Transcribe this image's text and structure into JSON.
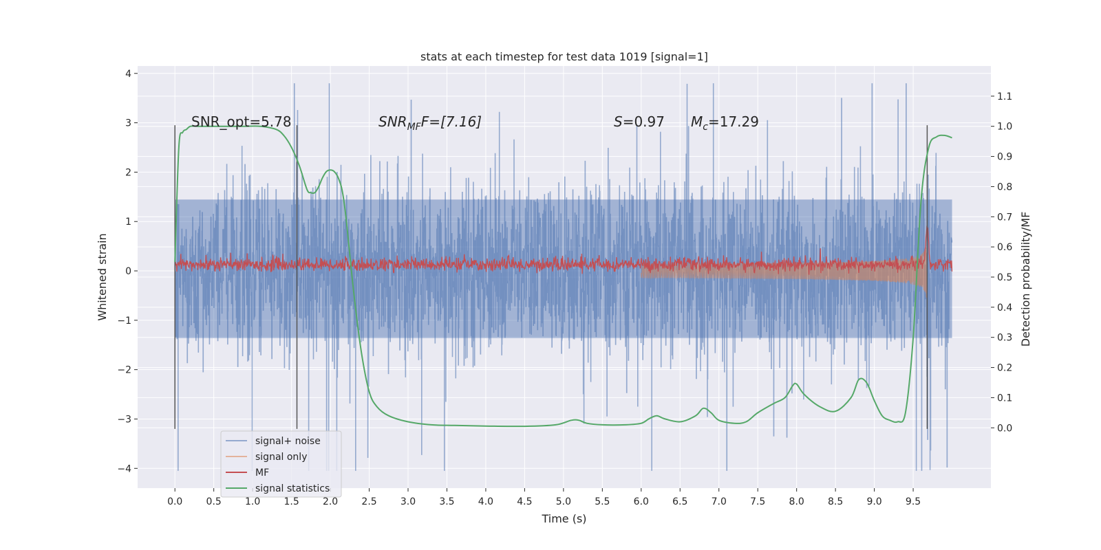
{
  "chart_data": {
    "type": "line",
    "title": "stats at each timestep for test data 1019 [signal=1]",
    "xlabel": "Time (s)",
    "ylabel": "Whitened strain",
    "y2label": "Detection probability/MF",
    "xlim": [
      -0.48,
      10.5
    ],
    "ylim": [
      -4.4,
      4.15
    ],
    "y2lim": [
      -0.2,
      1.2
    ],
    "x_ticks": [
      "0.0",
      "0.5",
      "1.0",
      "1.5",
      "2.0",
      "2.5",
      "3.0",
      "3.5",
      "4.0",
      "4.5",
      "5.0",
      "5.5",
      "6.0",
      "6.5",
      "7.0",
      "7.5",
      "8.0",
      "8.5",
      "9.0",
      "9.5"
    ],
    "y_ticks": [
      "−4",
      "−3",
      "−2",
      "−1",
      "0",
      "1",
      "2",
      "3",
      "4"
    ],
    "y2_ticks": [
      "0.0",
      "0.1",
      "0.2",
      "0.3",
      "0.4",
      "0.5",
      "0.6",
      "0.7",
      "0.8",
      "0.9",
      "1.0",
      "1.1"
    ],
    "grid": true,
    "legend_placement": "lower-left",
    "annotations": {
      "snr_opt": "SNR_opt=5.78",
      "snr_mf_main": "SNR",
      "snr_mf_sub": "MF",
      "snr_mf_rest": "F=[7.16]",
      "s_main": "S",
      "s_rest": "=0.97",
      "mc_main": "M",
      "mc_sub": "c",
      "mc_rest": "=17.29"
    },
    "vertical_lines_x": [
      0.0,
      1.57,
      9.68
    ],
    "series": [
      {
        "name": "signal+ noise",
        "color": "#4c72b0",
        "kind": "noise-band",
        "x_range": [
          0.0,
          10.0
        ],
        "typical_range": [
          -1.6,
          1.7
        ],
        "peak_range": [
          -4.05,
          3.8
        ]
      },
      {
        "name": "signal only",
        "color": "#dd8452",
        "kind": "chirp",
        "x_range": [
          0.0,
          9.68
        ],
        "amplitude_end": 0.75
      },
      {
        "name": "MF",
        "color": "#c44e52",
        "kind": "noise-band-right-axis",
        "x_range": [
          0.0,
          10.0
        ],
        "typical_range": [
          0.52,
          0.56
        ],
        "peak_range": [
          0.5,
          0.67
        ]
      },
      {
        "name": "signal statistics",
        "color": "#55a868",
        "kind": "line-right-axis",
        "x": [
          0.0,
          0.05,
          0.1,
          0.15,
          0.2,
          0.3,
          0.5,
          0.7,
          0.9,
          1.1,
          1.3,
          1.4,
          1.5,
          1.6,
          1.7,
          1.75,
          1.8,
          1.85,
          1.9,
          1.95,
          2.0,
          2.05,
          2.1,
          2.15,
          2.2,
          2.3,
          2.4,
          2.5,
          2.6,
          2.75,
          3.0,
          3.3,
          3.6,
          4.0,
          4.5,
          4.9,
          5.1,
          5.2,
          5.3,
          5.5,
          5.8,
          6.0,
          6.1,
          6.2,
          6.3,
          6.5,
          6.7,
          6.8,
          6.9,
          7.0,
          7.2,
          7.35,
          7.5,
          7.7,
          7.85,
          7.95,
          8.0,
          8.1,
          8.3,
          8.5,
          8.7,
          8.8,
          8.9,
          9.0,
          9.1,
          9.2,
          9.3,
          9.4,
          9.5,
          9.6,
          9.7,
          9.8,
          9.9,
          10.0
        ],
        "values": [
          0.55,
          0.93,
          0.98,
          0.99,
          1.0,
          1.0,
          1.0,
          1.0,
          1.0,
          1.0,
          0.99,
          0.97,
          0.93,
          0.87,
          0.79,
          0.78,
          0.78,
          0.8,
          0.83,
          0.85,
          0.855,
          0.85,
          0.83,
          0.79,
          0.7,
          0.45,
          0.25,
          0.12,
          0.07,
          0.04,
          0.02,
          0.01,
          0.008,
          0.006,
          0.005,
          0.01,
          0.025,
          0.025,
          0.015,
          0.01,
          0.01,
          0.015,
          0.03,
          0.04,
          0.03,
          0.02,
          0.04,
          0.065,
          0.05,
          0.025,
          0.015,
          0.02,
          0.05,
          0.08,
          0.1,
          0.14,
          0.145,
          0.11,
          0.07,
          0.055,
          0.1,
          0.16,
          0.15,
          0.09,
          0.04,
          0.025,
          0.02,
          0.05,
          0.3,
          0.75,
          0.93,
          0.965,
          0.97,
          0.962
        ]
      }
    ]
  }
}
